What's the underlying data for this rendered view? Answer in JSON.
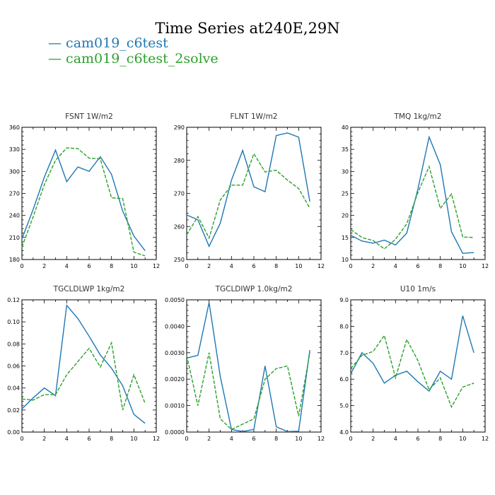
{
  "title": "Time Series at240E,29N",
  "legend": [
    {
      "label": "cam019_c6test",
      "color": "#1f77b4",
      "dash": "solid"
    },
    {
      "label": "cam019_c6test_2solve",
      "color": "#2ca02c",
      "dash": "dashed"
    }
  ],
  "colors": {
    "series_1": "#1f77b4",
    "series_2": "#2ca02c",
    "axis": "#000000"
  },
  "chart_data": [
    {
      "type": "line",
      "title": "FSNT   1W/m2",
      "x": [
        0,
        1,
        2,
        3,
        4,
        5,
        6,
        7,
        8,
        9,
        10,
        11
      ],
      "xlim": [
        0,
        12
      ],
      "ylim": [
        180,
        360
      ],
      "xticks": [
        0,
        2,
        4,
        6,
        8,
        10,
        12
      ],
      "yticks": [
        180,
        210,
        240,
        270,
        300,
        330,
        360
      ],
      "ytick_labels": [
        "180",
        "210",
        "240",
        "270",
        "300",
        "330",
        "360"
      ],
      "series": [
        {
          "name": "cam019_c6test",
          "values": [
            208,
            248,
            292,
            329,
            286,
            306,
            300,
            320,
            296,
            246,
            212,
            192
          ]
        },
        {
          "name": "cam019_c6test_2solve",
          "values": [
            197,
            238,
            282,
            315,
            332,
            331,
            318,
            317,
            264,
            263,
            190,
            185
          ]
        }
      ]
    },
    {
      "type": "line",
      "title": "FLNT   1W/m2",
      "x": [
        0,
        1,
        2,
        3,
        4,
        5,
        6,
        7,
        8,
        9,
        10,
        11
      ],
      "xlim": [
        0,
        12
      ],
      "ylim": [
        250,
        290
      ],
      "xticks": [
        0,
        2,
        4,
        6,
        8,
        10,
        12
      ],
      "yticks": [
        250,
        260,
        270,
        280,
        290
      ],
      "ytick_labels": [
        "250",
        "260",
        "270",
        "280",
        "290"
      ],
      "series": [
        {
          "name": "cam019_c6test",
          "values": [
            263.5,
            262,
            254,
            261,
            274,
            283,
            272,
            270.5,
            287.5,
            288.3,
            287,
            267.5
          ]
        },
        {
          "name": "cam019_c6test_2solve",
          "values": [
            257.5,
            263,
            256.5,
            268,
            272.5,
            272.5,
            282,
            276.5,
            277,
            274,
            271.5,
            265.5
          ]
        }
      ]
    },
    {
      "type": "line",
      "title": "TMQ   1kg/m2",
      "x": [
        0,
        1,
        2,
        3,
        4,
        5,
        6,
        7,
        8,
        9,
        10,
        11
      ],
      "xlim": [
        0,
        12
      ],
      "ylim": [
        10,
        40
      ],
      "xticks": [
        0,
        2,
        4,
        6,
        8,
        10,
        12
      ],
      "yticks": [
        10,
        15,
        20,
        25,
        30,
        35,
        40
      ],
      "ytick_labels": [
        "10",
        "15",
        "20",
        "25",
        "30",
        "35",
        "40"
      ],
      "series": [
        {
          "name": "cam019_c6test",
          "values": [
            15.5,
            14.2,
            13.7,
            14.4,
            13.3,
            16,
            26,
            37.8,
            31.5,
            16.3,
            11.4,
            11.6
          ]
        },
        {
          "name": "cam019_c6test_2solve",
          "values": [
            16.8,
            15,
            14.3,
            12.4,
            14.6,
            18.1,
            25.2,
            31.1,
            21.6,
            24.9,
            15.1,
            15
          ]
        }
      ]
    },
    {
      "type": "line",
      "title": "TGCLDLWP   1kg/m2",
      "x": [
        0,
        1,
        2,
        3,
        4,
        5,
        6,
        7,
        8,
        9,
        10,
        11
      ],
      "xlim": [
        0,
        12
      ],
      "ylim": [
        0,
        0.12
      ],
      "xticks": [
        0,
        2,
        4,
        6,
        8,
        10,
        12
      ],
      "yticks": [
        0,
        0.02,
        0.04,
        0.06,
        0.08,
        0.1,
        0.12
      ],
      "ytick_labels": [
        "0.00",
        "0.02",
        "0.04",
        "0.06",
        "0.08",
        "0.10",
        "0.12"
      ],
      "series": [
        {
          "name": "cam019_c6test",
          "values": [
            0.021,
            0.031,
            0.04,
            0.033,
            0.115,
            0.103,
            0.087,
            0.07,
            0.058,
            0.042,
            0.016,
            0.008
          ]
        },
        {
          "name": "cam019_c6test_2solve",
          "values": [
            0.03,
            0.029,
            0.034,
            0.034,
            0.052,
            0.064,
            0.076,
            0.059,
            0.081,
            0.02,
            0.052,
            0.026
          ]
        }
      ]
    },
    {
      "type": "line",
      "title": "TGCLDIWP   1.0kg/m2",
      "x": [
        0,
        1,
        2,
        3,
        4,
        5,
        6,
        7,
        8,
        9,
        10,
        11
      ],
      "xlim": [
        0,
        12
      ],
      "ylim": [
        0,
        0.005
      ],
      "xticks": [
        0,
        2,
        4,
        6,
        8,
        10,
        12
      ],
      "yticks": [
        0,
        0.001,
        0.002,
        0.003,
        0.004,
        0.005
      ],
      "ytick_labels": [
        "0.0000",
        "0.0010",
        "0.0020",
        "0.0030",
        "0.0040",
        "0.0050"
      ],
      "series": [
        {
          "name": "cam019_c6test",
          "values": [
            0.0028,
            0.0029,
            0.0049,
            0.0021,
            0.0001,
            2e-05,
            0.0001,
            0.0025,
            0.0002,
            2e-05,
            3e-05,
            0.0031
          ]
        },
        {
          "name": "cam019_c6test_2solve",
          "values": [
            0.0029,
            0.001,
            0.003,
            0.0005,
            0.0001,
            0.0003,
            0.0005,
            0.002,
            0.0024,
            0.0025,
            0.0006,
            0.003
          ]
        }
      ]
    },
    {
      "type": "line",
      "title": "U10   1m/s",
      "x": [
        0,
        1,
        2,
        3,
        4,
        5,
        6,
        7,
        8,
        9,
        10,
        11
      ],
      "xlim": [
        0,
        12
      ],
      "ylim": [
        4,
        9
      ],
      "xticks": [
        0,
        2,
        4,
        6,
        8,
        10,
        12
      ],
      "yticks": [
        4,
        5,
        6,
        7,
        8,
        9
      ],
      "ytick_labels": [
        "4.0",
        "5.0",
        "6.0",
        "7.0",
        "8.0",
        "9.0"
      ],
      "series": [
        {
          "name": "cam019_c6test",
          "values": [
            6.2,
            7,
            6.6,
            5.85,
            6.15,
            6.3,
            5.9,
            5.55,
            6.3,
            6,
            8.4,
            7
          ]
        },
        {
          "name": "cam019_c6test_2solve",
          "values": [
            6.4,
            6.9,
            7.05,
            7.65,
            6.05,
            7.5,
            6.7,
            5.6,
            6.05,
            4.95,
            5.7,
            5.85
          ]
        }
      ]
    }
  ]
}
